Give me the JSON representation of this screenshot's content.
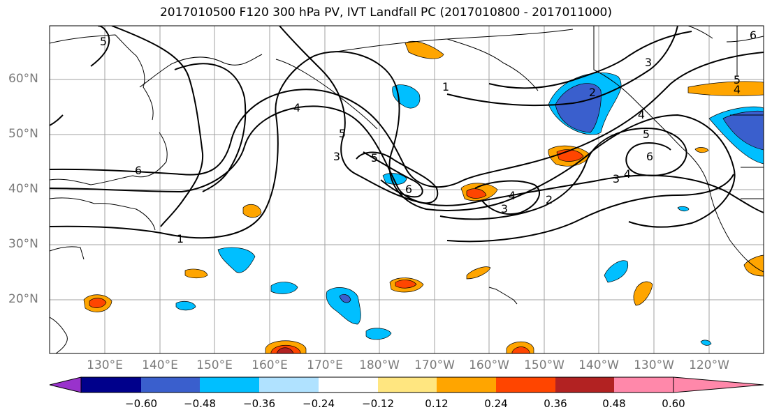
{
  "title": "2017010500 F120 300 hPa PV, IVT Landfall PC (2017010800 - 2017011000)",
  "lat_labels": [
    "60°N",
    "50°N",
    "40°N",
    "30°N",
    "20°N"
  ],
  "lon_labels": [
    "130°E",
    "140°E",
    "150°E",
    "160°E",
    "170°E",
    "180°W",
    "170°W",
    "160°W",
    "150°W",
    "140°W",
    "130°W",
    "120°W"
  ],
  "contour_labels": [
    "5",
    "4",
    "5",
    "3",
    "5",
    "6",
    "1",
    "2",
    "3",
    "4",
    "5",
    "6",
    "3",
    "4",
    "2",
    "3",
    "4",
    "6",
    "1",
    "4",
    "5",
    "6"
  ],
  "colorbar": {
    "tick_labels": [
      "−0.60",
      "−0.48",
      "−0.36",
      "−0.24",
      "−0.12",
      "0.12",
      "0.24",
      "0.36",
      "0.48",
      "0.60"
    ],
    "colors": [
      "#9932cc",
      "#00008b",
      "#3a5fcd",
      "#00bfff",
      "#b0e2ff",
      "#ffffff",
      "#ffe680",
      "#ffa500",
      "#ff4500",
      "#b22222",
      "#ff88aa"
    ]
  }
}
